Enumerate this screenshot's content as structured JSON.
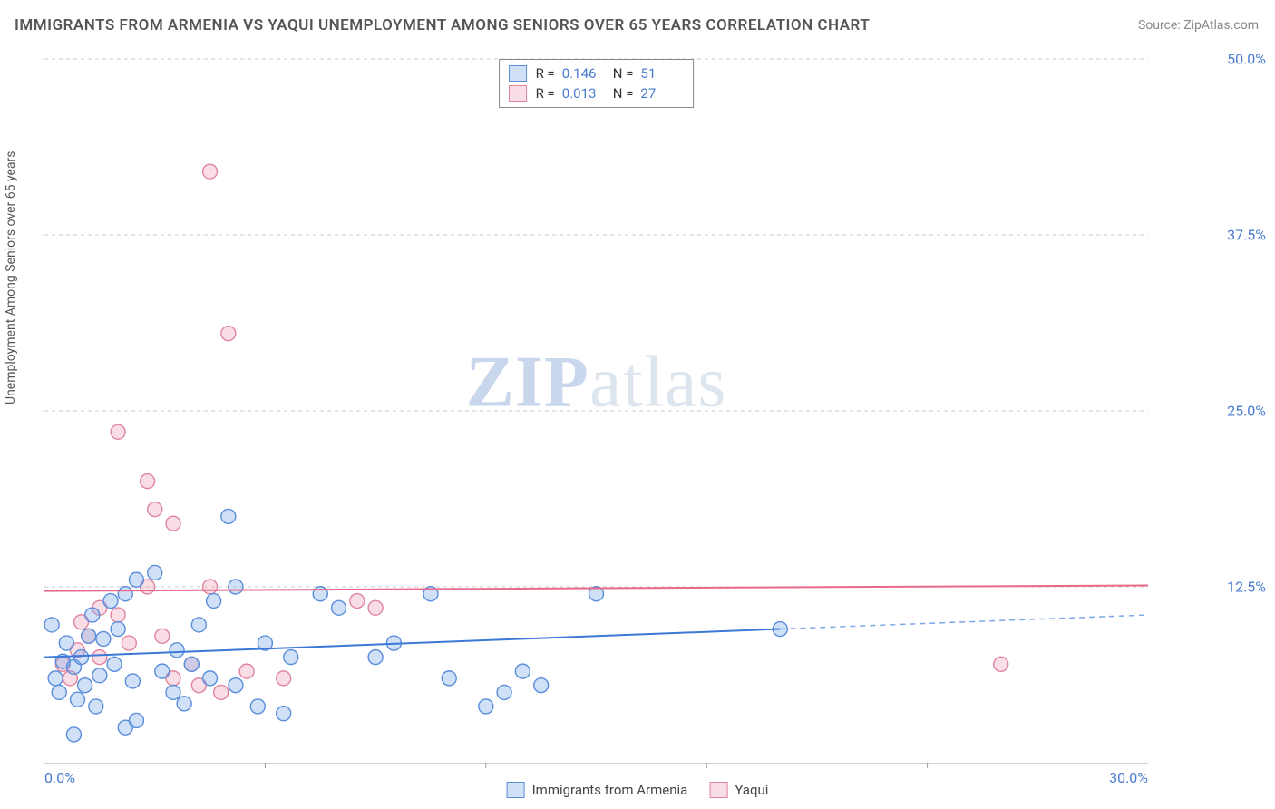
{
  "title": "IMMIGRANTS FROM ARMENIA VS YAQUI UNEMPLOYMENT AMONG SENIORS OVER 65 YEARS CORRELATION CHART",
  "source": {
    "label": "Source:",
    "value": "ZipAtlas.com"
  },
  "watermark": {
    "prefix": "ZIP",
    "suffix": "atlas"
  },
  "y_axis": {
    "label": "Unemployment Among Seniors over 65 years",
    "min": 0,
    "max": 50,
    "ticks": [
      {
        "value": 25.0,
        "label": "25.0%"
      },
      {
        "value": 37.5,
        "label": "37.5%"
      },
      {
        "value": 50.0,
        "label": "50.0%"
      },
      {
        "value": 12.5,
        "label": "12.5%"
      }
    ],
    "label_fontsize": 14,
    "tick_fontsize": 16,
    "tick_color": "#4a7bd0"
  },
  "x_axis": {
    "min": 0,
    "max": 30,
    "internal_ticks": [
      6,
      12,
      18,
      24
    ],
    "end_ticks": [
      {
        "value": 0.0,
        "label": "0.0%"
      },
      {
        "value": 30.0,
        "label": "30.0%"
      }
    ],
    "tick_fontsize": 16,
    "tick_color": "#4a7bd0"
  },
  "stat_legend": {
    "rows": [
      {
        "swatch": "blue",
        "r_label": "R =",
        "r_value": "0.146",
        "n_label": "N =",
        "n_value": "51"
      },
      {
        "swatch": "pink",
        "r_label": "R =",
        "r_value": "0.013",
        "n_label": "N =",
        "n_value": "27"
      }
    ],
    "border_color": "#888",
    "fontsize": 15
  },
  "bottom_legend": {
    "items": [
      {
        "swatch": "blue",
        "label": "Immigrants from Armenia"
      },
      {
        "swatch": "pink",
        "label": "Yaqui"
      }
    ],
    "fontsize": 15
  },
  "series": {
    "blue": {
      "name": "Immigrants from Armenia",
      "fill": "rgba(120,165,230,0.35)",
      "stroke": "#5a8edb",
      "marker_radius": 8,
      "trend": {
        "y0": 7.5,
        "y_at_20": 9.5,
        "solid_x_end": 20,
        "dash_x_end": 30,
        "dash_y_end": 10.5
      },
      "points": [
        {
          "x": 0.3,
          "y": 6.0
        },
        {
          "x": 0.5,
          "y": 7.2
        },
        {
          "x": 0.4,
          "y": 5.0
        },
        {
          "x": 0.6,
          "y": 8.5
        },
        {
          "x": 0.8,
          "y": 6.8
        },
        {
          "x": 0.9,
          "y": 4.5
        },
        {
          "x": 1.0,
          "y": 7.5
        },
        {
          "x": 1.2,
          "y": 9.0
        },
        {
          "x": 1.1,
          "y": 5.5
        },
        {
          "x": 1.3,
          "y": 10.5
        },
        {
          "x": 1.5,
          "y": 6.2
        },
        {
          "x": 1.6,
          "y": 8.8
        },
        {
          "x": 1.8,
          "y": 11.5
        },
        {
          "x": 1.9,
          "y": 7.0
        },
        {
          "x": 2.0,
          "y": 9.5
        },
        {
          "x": 2.2,
          "y": 12.0
        },
        {
          "x": 2.4,
          "y": 5.8
        },
        {
          "x": 2.5,
          "y": 13.0
        },
        {
          "x": 2.5,
          "y": 3.0
        },
        {
          "x": 2.2,
          "y": 2.5
        },
        {
          "x": 0.8,
          "y": 2.0
        },
        {
          "x": 3.0,
          "y": 13.5
        },
        {
          "x": 3.2,
          "y": 6.5
        },
        {
          "x": 3.5,
          "y": 5.0
        },
        {
          "x": 3.6,
          "y": 8.0
        },
        {
          "x": 3.8,
          "y": 4.2
        },
        {
          "x": 4.0,
          "y": 7.0
        },
        {
          "x": 4.2,
          "y": 9.8
        },
        {
          "x": 4.5,
          "y": 6.0
        },
        {
          "x": 4.6,
          "y": 11.5
        },
        {
          "x": 5.0,
          "y": 17.5
        },
        {
          "x": 5.2,
          "y": 5.5
        },
        {
          "x": 5.2,
          "y": 12.5
        },
        {
          "x": 5.8,
          "y": 4.0
        },
        {
          "x": 6.0,
          "y": 8.5
        },
        {
          "x": 6.5,
          "y": 3.5
        },
        {
          "x": 6.7,
          "y": 7.5
        },
        {
          "x": 7.5,
          "y": 12.0
        },
        {
          "x": 8.0,
          "y": 11.0
        },
        {
          "x": 9.0,
          "y": 7.5
        },
        {
          "x": 9.5,
          "y": 8.5
        },
        {
          "x": 10.5,
          "y": 12.0
        },
        {
          "x": 11.0,
          "y": 6.0
        },
        {
          "x": 12.5,
          "y": 5.0
        },
        {
          "x": 13.5,
          "y": 5.5
        },
        {
          "x": 12.0,
          "y": 4.0
        },
        {
          "x": 13.0,
          "y": 6.5
        },
        {
          "x": 15.0,
          "y": 12.0
        },
        {
          "x": 20.0,
          "y": 9.5
        },
        {
          "x": 1.4,
          "y": 4.0
        },
        {
          "x": 0.2,
          "y": 9.8
        }
      ]
    },
    "pink": {
      "name": "Yaqui",
      "fill": "rgba(240,160,180,0.35)",
      "stroke": "#e084a0",
      "marker_radius": 8,
      "trend": {
        "y0": 12.2,
        "y_at_30": 12.6
      },
      "points": [
        {
          "x": 0.5,
          "y": 7.0
        },
        {
          "x": 0.7,
          "y": 6.0
        },
        {
          "x": 0.9,
          "y": 8.0
        },
        {
          "x": 1.0,
          "y": 10.0
        },
        {
          "x": 1.2,
          "y": 9.0
        },
        {
          "x": 1.5,
          "y": 11.0
        },
        {
          "x": 1.5,
          "y": 7.5
        },
        {
          "x": 2.0,
          "y": 23.5
        },
        {
          "x": 2.0,
          "y": 10.5
        },
        {
          "x": 2.3,
          "y": 8.5
        },
        {
          "x": 2.8,
          "y": 20.0
        },
        {
          "x": 2.8,
          "y": 12.5
        },
        {
          "x": 3.0,
          "y": 18.0
        },
        {
          "x": 3.2,
          "y": 9.0
        },
        {
          "x": 3.5,
          "y": 17.0
        },
        {
          "x": 3.5,
          "y": 6.0
        },
        {
          "x": 4.0,
          "y": 7.0
        },
        {
          "x": 4.2,
          "y": 5.5
        },
        {
          "x": 4.5,
          "y": 42.0
        },
        {
          "x": 4.8,
          "y": 5.0
        },
        {
          "x": 5.0,
          "y": 30.5
        },
        {
          "x": 5.5,
          "y": 6.5
        },
        {
          "x": 6.5,
          "y": 6.0
        },
        {
          "x": 8.5,
          "y": 11.5
        },
        {
          "x": 9.0,
          "y": 11.0
        },
        {
          "x": 26.0,
          "y": 7.0
        },
        {
          "x": 4.5,
          "y": 12.5
        }
      ]
    }
  },
  "chart_style": {
    "type": "scatter",
    "background_color": "#ffffff",
    "grid_color": "#cccccc",
    "grid_dash": "4 4",
    "axis_color": "#d0d0d0",
    "trend_blue_color": "#3b78d8",
    "trend_blue_dash_color": "#7ba7e8",
    "trend_pink_color": "#e86a8a",
    "watermark_color": "rgba(120,150,190,0.25)",
    "watermark_fontsize": 80
  }
}
